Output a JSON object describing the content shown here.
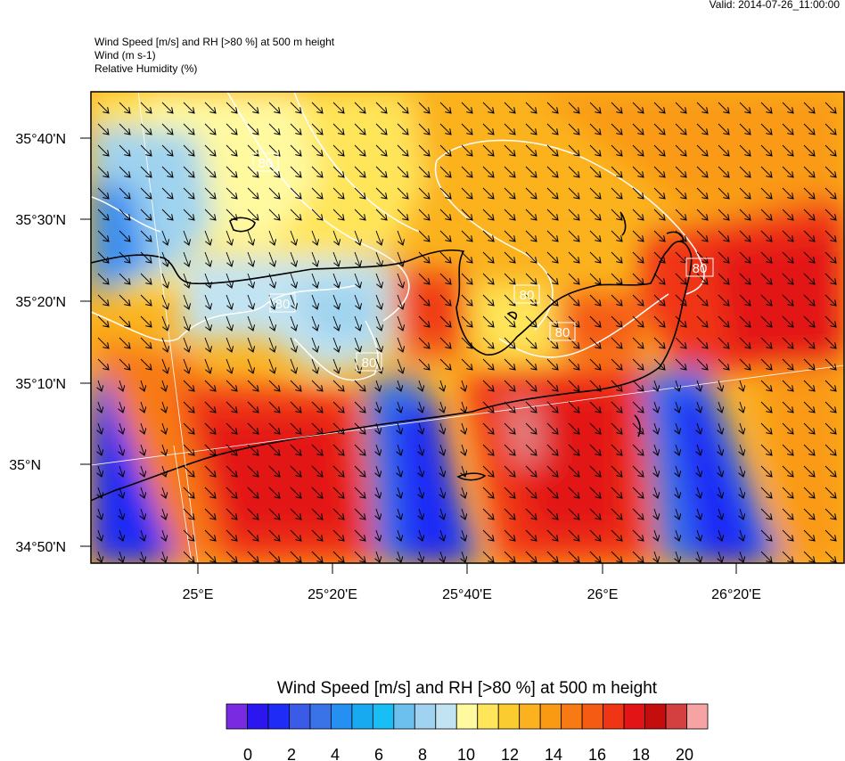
{
  "header": {
    "valid": "Valid: 2014-07-26_11:00:00",
    "title_lines": [
      "Wind Speed [m/s] and RH [>80 %] at 500 m height",
      "Wind   (m s-1)",
      "Relative Humidity   (%)"
    ]
  },
  "axes": {
    "lat_labels": [
      "35°40'N",
      "35°30'N",
      "35°20'N",
      "35°10'N",
      "35°N",
      "34°50'N"
    ],
    "lon_labels": [
      "25°E",
      "25°20'E",
      "25°40'E",
      "26°E",
      "26°20'E"
    ]
  },
  "contour_labels": [
    "80",
    "80",
    "80",
    "80",
    "80",
    "80",
    "80"
  ],
  "colorbar": {
    "title": "Wind Speed [m/s] and RH [>80 %] at 500 m height",
    "colors": [
      "#7a2ae0",
      "#2b16ef",
      "#1f2cf5",
      "#3a5ae8",
      "#3a72e8",
      "#258ff2",
      "#17aaf1",
      "#17bff5",
      "#6cc0ee",
      "#9fd3ef",
      "#c2e3f1",
      "#fff9a0",
      "#ffe55a",
      "#fbcc2f",
      "#fbb21e",
      "#fa9a12",
      "#f77a12",
      "#f55b12",
      "#f03516",
      "#e31416",
      "#c40d0d",
      "#d44040",
      "#f5a3a3"
    ],
    "tick_labels": [
      "0",
      "2",
      "4",
      "6",
      "8",
      "10",
      "12",
      "14",
      "16",
      "18",
      "20"
    ]
  }
}
